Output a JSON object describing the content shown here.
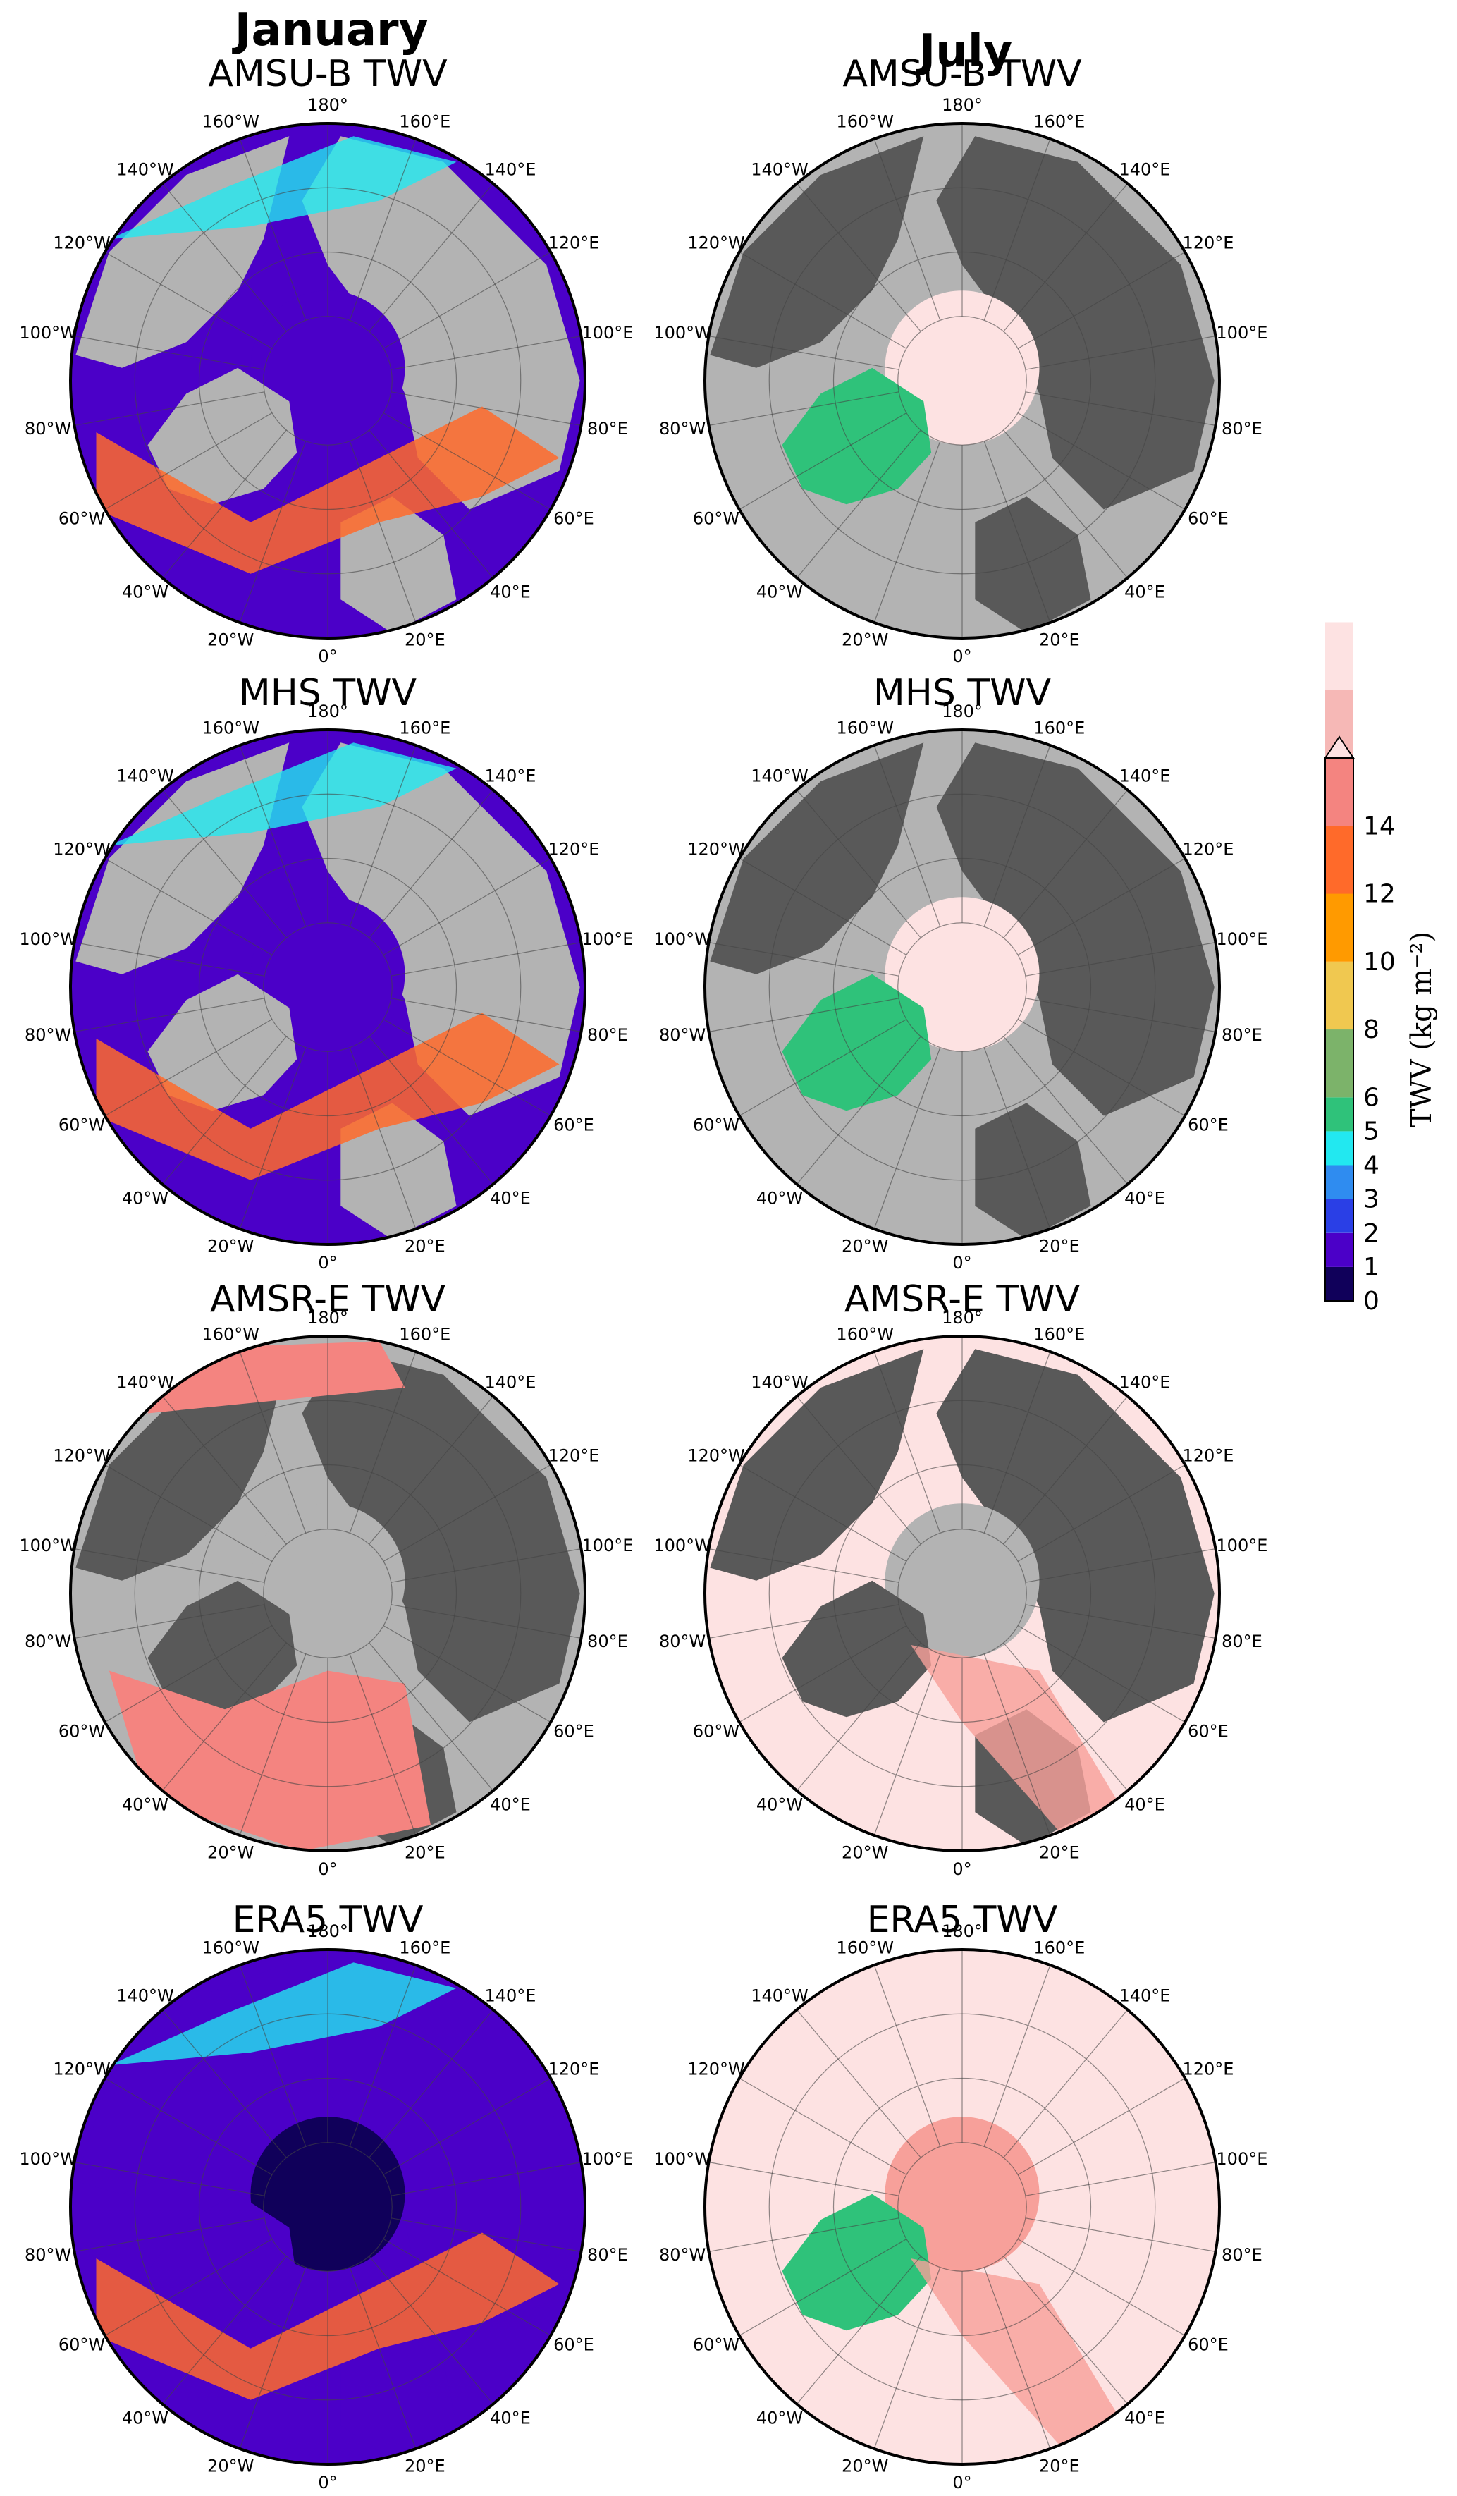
{
  "columns": [
    "January",
    "July"
  ],
  "lon_labels": [
    "180°",
    "160°E",
    "140°E",
    "120°E",
    "100°E",
    "80°E",
    "60°E",
    "40°E",
    "20°E",
    "0°",
    "20°W",
    "40°W",
    "60°W",
    "80°W",
    "100°W",
    "120°W",
    "140°W",
    "160°W"
  ],
  "panels": [
    {
      "column": "January",
      "title": "AMSU-B TWV",
      "row": 0,
      "fill": "twv_low",
      "coverage": "satellite"
    },
    {
      "column": "July",
      "title": "AMSU-B TWV",
      "row": 0,
      "fill": "gray_land_pink_pole",
      "coverage": "satellite"
    },
    {
      "column": "January",
      "title": "MHS TWV",
      "row": 1,
      "fill": "twv_low",
      "coverage": "satellite"
    },
    {
      "column": "July",
      "title": "MHS TWV",
      "row": 1,
      "fill": "gray_land_pink_pole",
      "coverage": "satellite"
    },
    {
      "column": "January",
      "title": "AMSR-E TWV",
      "row": 2,
      "fill": "ocean_only_mixed",
      "coverage": "ocean"
    },
    {
      "column": "July",
      "title": "AMSR-E TWV",
      "row": 2,
      "fill": "ocean_only_pink",
      "coverage": "ocean"
    },
    {
      "column": "January",
      "title": "ERA5 TWV",
      "row": 3,
      "fill": "full_low",
      "coverage": "full"
    },
    {
      "column": "July",
      "title": "ERA5 TWV",
      "row": 3,
      "fill": "full_pink",
      "coverage": "full"
    }
  ],
  "colorbar": {
    "label": "TWV (kg m⁻²)",
    "ticks": [
      "0",
      "1",
      "2",
      "3",
      "4",
      "5",
      "6",
      "8",
      "10",
      "12",
      "14"
    ],
    "bins": [
      {
        "from": 0,
        "to": 1,
        "color": "#10005a"
      },
      {
        "from": 1,
        "to": 2,
        "color": "#4b00c8"
      },
      {
        "from": 2,
        "to": 3,
        "color": "#2a3fe6"
      },
      {
        "from": 3,
        "to": 4,
        "color": "#2f8cf0"
      },
      {
        "from": 4,
        "to": 5,
        "color": "#22e8f0"
      },
      {
        "from": 5,
        "to": 6,
        "color": "#2fc27a"
      },
      {
        "from": 6,
        "to": 8,
        "color": "#7cb36a"
      },
      {
        "from": 8,
        "to": 10,
        "color": "#f0c850"
      },
      {
        "from": 10,
        "to": 12,
        "color": "#ff9a00"
      },
      {
        "from": 12,
        "to": 14,
        "color": "#ff6a2a"
      },
      {
        "from": 14,
        "to": 16,
        "color": "#f48480"
      },
      {
        "from": 16,
        "to": 18,
        "color": "#f6b8b6"
      },
      {
        "from": 18,
        "to": 20,
        "color": "#fde2e2"
      }
    ],
    "extend": "max"
  },
  "colors": {
    "land": "#595959",
    "mask": "#b3b3b3",
    "pink": "#fde2e2",
    "salmon": "#f7a09a"
  }
}
